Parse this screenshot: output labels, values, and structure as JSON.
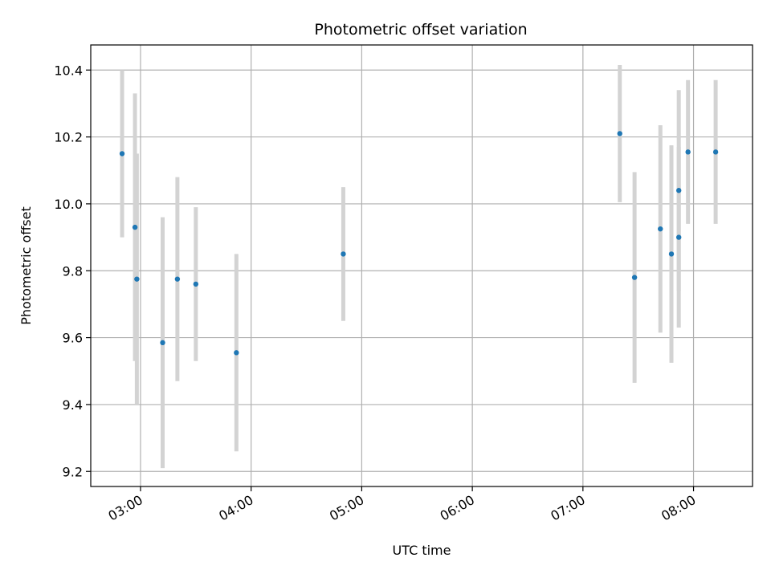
{
  "chart_data": {
    "type": "scatter",
    "title": "Photometric offset variation",
    "xlabel": "UTC time",
    "ylabel": "Photometric offset",
    "x_type": "time",
    "xlim": [
      "02:33",
      "08:32"
    ],
    "ylim": [
      9.155,
      10.475
    ],
    "x_ticks": [
      "03:00",
      "04:00",
      "05:00",
      "06:00",
      "07:00",
      "08:00"
    ],
    "y_ticks": [
      9.2,
      9.4,
      9.6,
      9.8,
      10.0,
      10.2,
      10.4
    ],
    "grid": true,
    "point_color": "#1f77b4",
    "errorbar_color": "#d3d3d3",
    "series": [
      {
        "x": [
          "02:50",
          "02:57",
          "02:58",
          "03:12",
          "03:20",
          "03:30",
          "03:52",
          "04:50",
          "07:20",
          "07:28",
          "07:42",
          "07:48",
          "07:52",
          "07:52",
          "07:57",
          "08:12"
        ],
        "y": [
          10.15,
          9.93,
          9.775,
          9.585,
          9.775,
          9.76,
          9.555,
          9.85,
          10.21,
          9.78,
          9.925,
          9.85,
          9.9,
          10.04,
          10.155,
          10.155
        ],
        "yerr": [
          0.25,
          0.4,
          0.375,
          0.375,
          0.305,
          0.23,
          0.295,
          0.2,
          0.205,
          0.315,
          0.31,
          0.325,
          0.27,
          0.3,
          0.215,
          0.215
        ]
      }
    ]
  }
}
